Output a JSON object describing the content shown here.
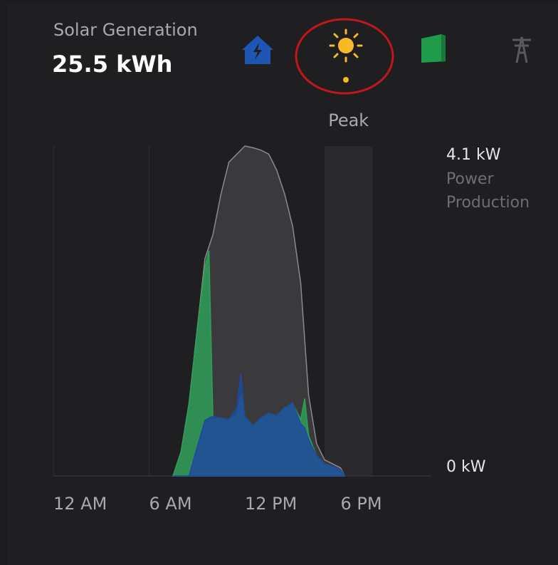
{
  "header": {
    "title": "Solar Generation",
    "value": "25.5 kWh"
  },
  "chart_data": {
    "type": "area",
    "peak_label": "Peak",
    "peak_range": [
      17,
      20
    ],
    "y_label_lines": [
      "Power",
      "Production"
    ],
    "xlim": [
      0,
      24
    ],
    "xticks": [
      {
        "value": 0,
        "label": "12 AM"
      },
      {
        "value": 6,
        "label": "6 AM"
      },
      {
        "value": 12,
        "label": "12 PM"
      },
      {
        "value": 18,
        "label": "6 PM"
      }
    ],
    "ylim": [
      0,
      4.1
    ],
    "yticks": [
      {
        "value": 4.1,
        "label": "4.1 kW"
      },
      {
        "value": 0,
        "label": "0 kW"
      }
    ],
    "grid": true,
    "x": [
      7.5,
      8,
      8.5,
      9,
      9.5,
      9.75,
      10,
      10.5,
      11,
      11.5,
      11.75,
      12,
      12.5,
      13,
      13.5,
      14,
      14.5,
      15,
      15.5,
      15.75,
      16,
      16.5,
      17,
      17.5,
      18,
      18.25
    ],
    "series": [
      {
        "color": "#3a3a3d",
        "values": [
          0,
          0.3,
          0.9,
          1.8,
          2.7,
          2.85,
          3.0,
          3.5,
          3.9,
          4.0,
          4.05,
          4.1,
          4.08,
          4.05,
          4.0,
          3.8,
          3.5,
          3.1,
          2.4,
          1.7,
          1.0,
          0.4,
          0.2,
          0.15,
          0.1,
          0
        ]
      },
      {
        "color": "#2f9e58",
        "values": [
          0,
          0.3,
          0.9,
          1.8,
          2.6,
          2.8,
          0.7,
          0.72,
          0.7,
          0.75,
          1.0,
          0.74,
          0.62,
          0.72,
          0.78,
          0.75,
          0.85,
          0.9,
          0.7,
          0.96,
          0.5,
          0.25,
          0.15,
          0.12,
          0.08,
          0
        ]
      },
      {
        "color": "#1f4a9c",
        "values": [
          0,
          0,
          0,
          0.35,
          0.69,
          0.72,
          0.74,
          0.72,
          0.7,
          0.85,
          1.27,
          0.74,
          0.62,
          0.72,
          0.78,
          0.75,
          0.85,
          0.91,
          0.65,
          0.6,
          0.45,
          0.25,
          0.15,
          0.12,
          0.08,
          0
        ]
      }
    ]
  }
}
